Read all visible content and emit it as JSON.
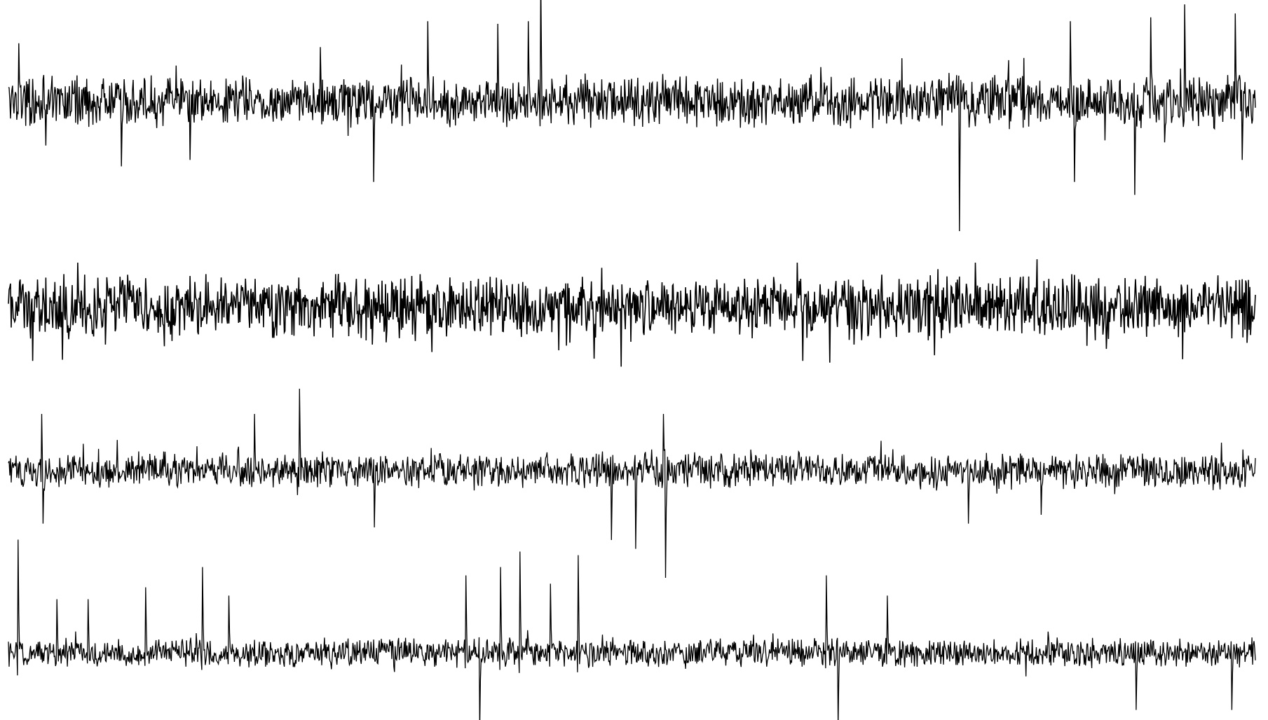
{
  "chart_data": {
    "type": "line",
    "title": "",
    "xlabel": "",
    "ylabel": "",
    "grid": false,
    "legend": "none",
    "line_color": "#000000",
    "background_color": "#ffffff",
    "x_range": [
      0,
      1800
    ],
    "y_range": [
      -1,
      1
    ],
    "samples_per_trace": 1800,
    "series": [
      {
        "baseline_level": 0.0,
        "noise_amplitude": 0.22,
        "spikes": [
          {
            "x": 15,
            "value": 0.45
          },
          {
            "x": 163,
            "value": 0.55
          },
          {
            "x": 163,
            "value": -0.5
          },
          {
            "x": 262,
            "value": 0.45
          },
          {
            "x": 262,
            "value": -0.45
          },
          {
            "x": 450,
            "value": 0.42
          },
          {
            "x": 527,
            "value": -0.62
          },
          {
            "x": 605,
            "value": 0.62
          },
          {
            "x": 705,
            "value": -0.72
          },
          {
            "x": 706,
            "value": 0.6
          },
          {
            "x": 750,
            "value": 0.62
          },
          {
            "x": 768,
            "value": 0.95
          },
          {
            "x": 1372,
            "value": 0.45
          },
          {
            "x": 1372,
            "value": -1.0
          },
          {
            "x": 1532,
            "value": 0.62
          },
          {
            "x": 1538,
            "value": -0.62
          },
          {
            "x": 1625,
            "value": -0.72
          },
          {
            "x": 1648,
            "value": 0.65
          },
          {
            "x": 1697,
            "value": 0.75
          },
          {
            "x": 1770,
            "value": 0.68
          },
          {
            "x": 1780,
            "value": -0.45
          }
        ]
      },
      {
        "baseline_level": 0.0,
        "noise_amplitude": 0.28,
        "spikes": [
          {
            "x": 100,
            "value": 0.35
          },
          {
            "x": 140,
            "value": -0.3
          },
          {
            "x": 525,
            "value": -0.3
          },
          {
            "x": 1138,
            "value": 0.35
          },
          {
            "x": 1220,
            "value": -0.3
          },
          {
            "x": 1395,
            "value": 0.35
          }
        ]
      },
      {
        "baseline_level": 0.0,
        "noise_amplitude": 0.16,
        "spikes": [
          {
            "x": 48,
            "value": 0.45
          },
          {
            "x": 50,
            "value": -0.42
          },
          {
            "x": 355,
            "value": 0.45
          },
          {
            "x": 420,
            "value": 0.65
          },
          {
            "x": 528,
            "value": -0.45
          },
          {
            "x": 870,
            "value": -0.55
          },
          {
            "x": 905,
            "value": -0.62
          },
          {
            "x": 945,
            "value": 0.45
          },
          {
            "x": 948,
            "value": -0.85
          },
          {
            "x": 1385,
            "value": -0.42
          },
          {
            "x": 1490,
            "value": -0.35
          },
          {
            "x": 1800,
            "value": 0.1
          }
        ]
      },
      {
        "baseline_level": 0.0,
        "noise_amplitude": 0.14,
        "spikes": [
          {
            "x": 14,
            "value": 0.95
          },
          {
            "x": 70,
            "value": 0.45
          },
          {
            "x": 115,
            "value": 0.45
          },
          {
            "x": 198,
            "value": 0.55
          },
          {
            "x": 280,
            "value": 0.72
          },
          {
            "x": 318,
            "value": 0.48
          },
          {
            "x": 660,
            "value": 0.65
          },
          {
            "x": 680,
            "value": -0.65
          },
          {
            "x": 710,
            "value": 0.72
          },
          {
            "x": 738,
            "value": 0.85
          },
          {
            "x": 782,
            "value": 0.58
          },
          {
            "x": 822,
            "value": 0.82
          },
          {
            "x": 1180,
            "value": 0.65
          },
          {
            "x": 1197,
            "value": -0.62
          },
          {
            "x": 1268,
            "value": 0.48
          },
          {
            "x": 1627,
            "value": -0.48
          },
          {
            "x": 1765,
            "value": -0.48
          }
        ]
      }
    ]
  }
}
